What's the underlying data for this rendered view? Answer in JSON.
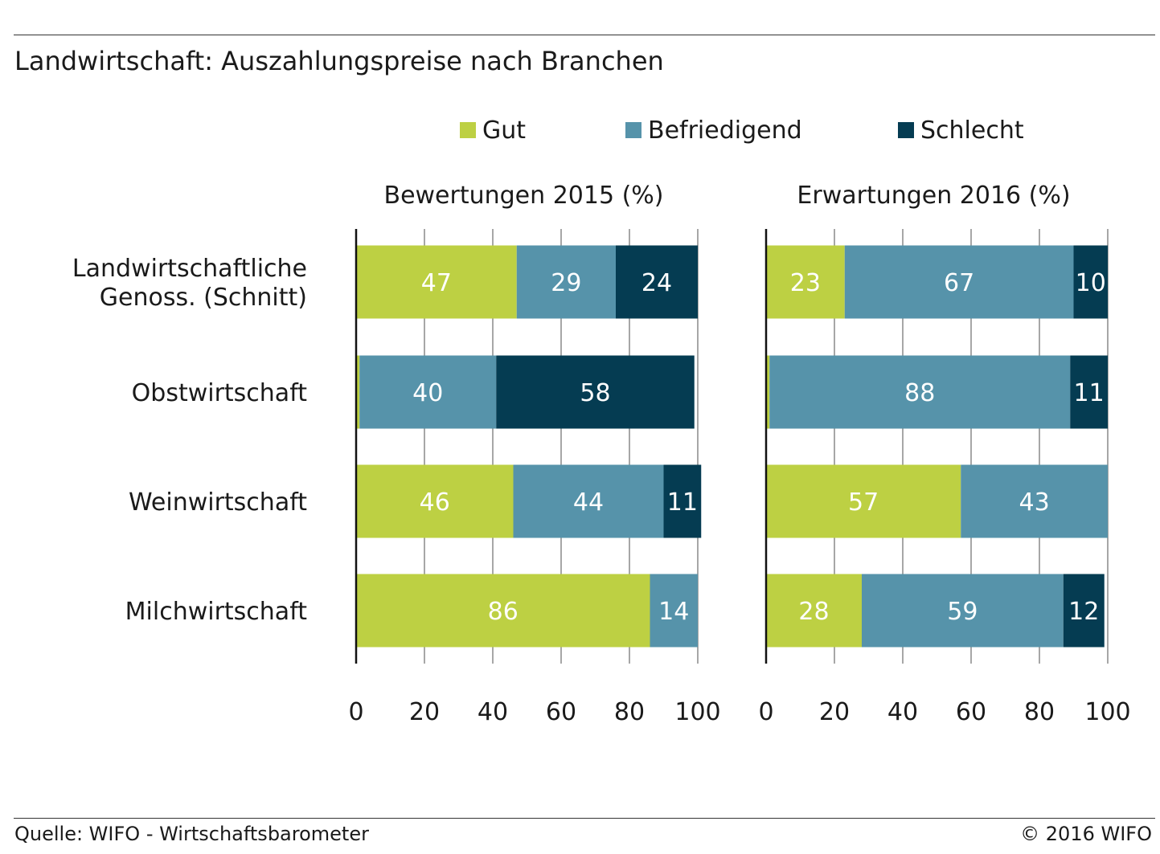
{
  "title": "Landwirtschaft: Auszahlungspreise nach Branchen",
  "footer": {
    "source": "Quelle: WIFO - Wirtschaftsbarometer",
    "copyright": "© 2016 WIFO"
  },
  "colors": {
    "gut": "#bdd043",
    "befriedigend": "#5693aa",
    "schlecht": "#053c52"
  },
  "legend": [
    "Gut",
    "Befriedigend",
    "Schlecht"
  ],
  "chart_data": {
    "type": "bar",
    "orientation": "horizontal",
    "stacked": true,
    "categories": [
      "Landwirtschaftliche\nGenoss. (Schnitt)",
      "Obstwirtschaft",
      "Weinwirtschaft",
      "Milchwirtschaft"
    ],
    "xlim": [
      0,
      100
    ],
    "xticks": [
      0,
      20,
      40,
      60,
      80,
      100
    ],
    "grid": true,
    "legend_position": "top",
    "panels": [
      {
        "title": "Bewertungen 2015 (%)",
        "series": [
          {
            "name": "Gut",
            "values": [
              47,
              1,
              46,
              86
            ],
            "labels": [
              "47",
              "",
              "46",
              "86"
            ]
          },
          {
            "name": "Befriedigend",
            "values": [
              29,
              40,
              44,
              14
            ],
            "labels": [
              "29",
              "40",
              "44",
              "14"
            ]
          },
          {
            "name": "Schlecht",
            "values": [
              24,
              58,
              11,
              0
            ],
            "labels": [
              "24",
              "58",
              "11",
              ""
            ]
          }
        ]
      },
      {
        "title": "Erwartungen 2016 (%)",
        "series": [
          {
            "name": "Gut",
            "values": [
              23,
              1,
              57,
              28
            ],
            "labels": [
              "23",
              "",
              "57",
              "28"
            ]
          },
          {
            "name": "Befriedigend",
            "values": [
              67,
              88,
              43,
              59
            ],
            "labels": [
              "67",
              "88",
              "43",
              "59"
            ]
          },
          {
            "name": "Schlecht",
            "values": [
              10,
              11,
              0,
              12
            ],
            "labels": [
              "10",
              "11",
              "",
              "12"
            ]
          }
        ]
      }
    ]
  }
}
